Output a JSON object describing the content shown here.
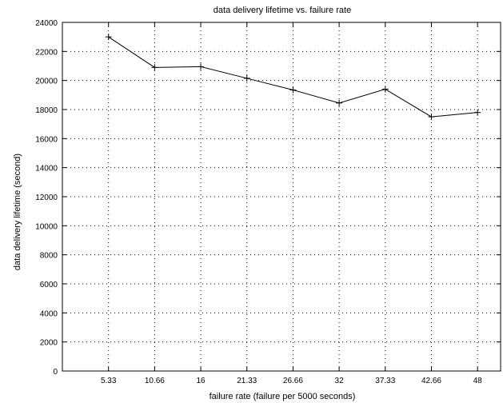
{
  "chart_data": {
    "type": "line",
    "title": "data delivery lifetime vs. failure rate",
    "xlabel": "failure rate (failure per 5000 seconds)",
    "ylabel": "data delivery lifetime (second)",
    "x_tick_labels": [
      "5.33",
      "10.66",
      "16",
      "21.33",
      "26.66",
      "32",
      "37.33",
      "42.66",
      "48"
    ],
    "y_ticks": [
      0,
      2000,
      4000,
      6000,
      8000,
      10000,
      12000,
      14000,
      16000,
      18000,
      20000,
      22000,
      24000
    ],
    "ylim": [
      0,
      24000
    ],
    "grid": "dotted",
    "series": [
      {
        "marker": "plus",
        "color": "#000000",
        "x": [
          5.33,
          10.66,
          16,
          21.33,
          26.66,
          32,
          37.33,
          42.66,
          48
        ],
        "values": [
          23000,
          20900,
          20950,
          20150,
          19350,
          18450,
          19400,
          17500,
          17800
        ]
      }
    ]
  }
}
